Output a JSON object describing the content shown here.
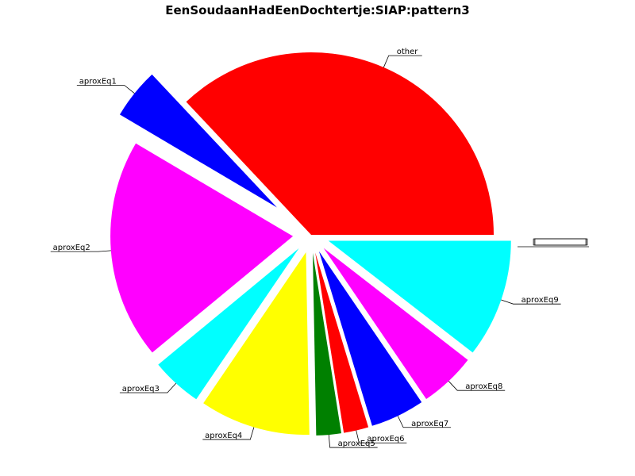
{
  "chart_data": {
    "type": "pie",
    "title": "EenSoudaanHadEenDochtertje:SIAP:pattern3",
    "start_angle_deg": 0,
    "direction": "counterclockwise",
    "slices": [
      {
        "label": "other",
        "value": 37.0,
        "color": "#ff0000",
        "explode": 0.0
      },
      {
        "label": "aproxEq1",
        "value": 4.5,
        "color": "#0000ff",
        "explode": 0.6
      },
      {
        "label": "aproxEq2",
        "value": 19.5,
        "color": "#ff00ff",
        "explode": 0.25
      },
      {
        "label": "aproxEq3",
        "value": 4.5,
        "color": "#00ffff",
        "explode": 0.25
      },
      {
        "label": "aproxEq4",
        "value": 9.8,
        "color": "#ffff00",
        "explode": 0.25
      },
      {
        "label": "aproxEq5",
        "value": 2.2,
        "color": "#008000",
        "explode": 0.25
      },
      {
        "label": "aproxEq6",
        "value": 2.2,
        "color": "#ff0000",
        "explode": 0.25
      },
      {
        "label": "aproxEq7",
        "value": 4.8,
        "color": "#0000ff",
        "explode": 0.25
      },
      {
        "label": "aproxEq8",
        "value": 5.0,
        "color": "#ff00ff",
        "explode": 0.25
      },
      {
        "label": "aproxEq9",
        "value": 10.5,
        "color": "#00ffff",
        "explode": 0.25
      }
    ],
    "unreadable_overlapping_label_values": [
      0,
      0,
      0,
      0,
      0,
      0
    ]
  }
}
